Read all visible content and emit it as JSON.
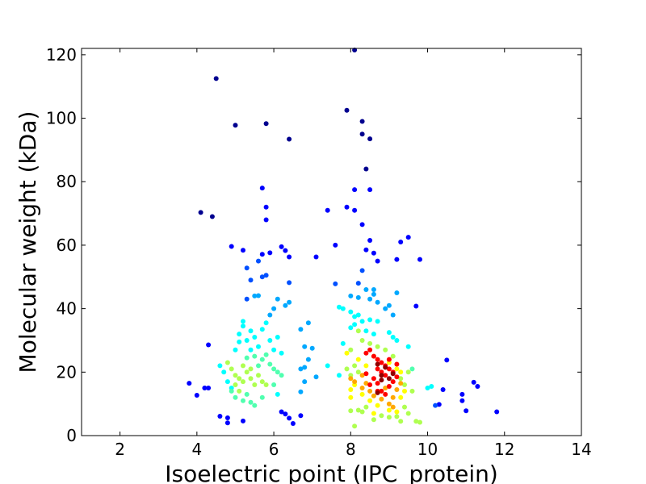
{
  "chart_data": {
    "type": "scatter",
    "title": "",
    "xlabel": "Isoelectric point (IPC_protein)",
    "ylabel": "Molecular weight (kDa)",
    "xlim": [
      1,
      14
    ],
    "ylim": [
      0,
      122
    ],
    "xticks": [
      2,
      4,
      6,
      8,
      10,
      12,
      14
    ],
    "yticks": [
      0,
      20,
      40,
      60,
      80,
      100,
      120
    ],
    "grid": false,
    "legend": "none",
    "colormap": "jet (point density)",
    "points": [
      [
        4.5,
        112.5,
        0
      ],
      [
        5.0,
        97.8,
        0
      ],
      [
        5.8,
        98.3,
        0
      ],
      [
        6.4,
        93.4,
        0
      ],
      [
        4.1,
        70.3,
        0
      ],
      [
        4.4,
        69.0,
        0
      ],
      [
        4.9,
        59.6,
        1
      ],
      [
        5.2,
        58.4,
        1
      ],
      [
        5.7,
        57.1,
        1
      ],
      [
        5.9,
        57.6,
        1
      ],
      [
        5.7,
        78.0,
        1
      ],
      [
        5.8,
        72.0,
        1
      ],
      [
        5.8,
        68.0,
        1
      ],
      [
        6.2,
        59.5,
        1
      ],
      [
        6.3,
        58.3,
        1
      ],
      [
        6.4,
        56.3,
        1
      ],
      [
        5.3,
        52.8,
        2
      ],
      [
        5.4,
        49.0,
        2
      ],
      [
        5.6,
        55.0,
        2
      ],
      [
        5.7,
        50.0,
        2
      ],
      [
        5.8,
        50.5,
        2
      ],
      [
        6.4,
        48.2,
        2
      ],
      [
        5.3,
        43.0,
        2
      ],
      [
        5.5,
        44.0,
        3
      ],
      [
        5.6,
        44.1,
        3
      ],
      [
        5.9,
        38.0,
        3
      ],
      [
        6.0,
        40.0,
        3
      ],
      [
        6.1,
        43.0,
        3
      ],
      [
        6.3,
        41.0,
        3
      ],
      [
        6.4,
        42.0,
        3
      ],
      [
        3.8,
        16.5,
        1
      ],
      [
        4.0,
        12.7,
        1
      ],
      [
        4.2,
        15.0,
        1
      ],
      [
        4.3,
        15.0,
        1
      ],
      [
        4.3,
        28.6,
        1
      ],
      [
        4.6,
        6.1,
        1
      ],
      [
        4.8,
        5.6,
        1
      ],
      [
        4.8,
        4.0,
        1
      ],
      [
        5.2,
        4.6,
        1
      ],
      [
        6.2,
        7.5,
        1
      ],
      [
        6.3,
        6.8,
        1
      ],
      [
        6.4,
        5.5,
        1
      ],
      [
        6.5,
        3.8,
        1
      ],
      [
        6.7,
        6.3,
        1
      ],
      [
        5.0,
        27.0,
        4
      ],
      [
        5.1,
        29.5,
        4
      ],
      [
        5.1,
        32.0,
        4
      ],
      [
        5.2,
        34.5,
        4
      ],
      [
        5.2,
        36.0,
        4
      ],
      [
        5.3,
        30.0,
        4
      ],
      [
        5.4,
        33.0,
        4
      ],
      [
        5.4,
        27.0,
        4
      ],
      [
        5.5,
        31.0,
        4
      ],
      [
        5.6,
        28.0,
        4
      ],
      [
        5.7,
        33.5,
        4
      ],
      [
        5.8,
        35.5,
        4
      ],
      [
        5.9,
        30.0,
        4
      ],
      [
        6.0,
        27.0,
        4
      ],
      [
        6.1,
        31.0,
        4
      ],
      [
        6.2,
        26.0,
        4
      ],
      [
        5.3,
        24.5,
        5
      ],
      [
        5.5,
        25.0,
        5
      ],
      [
        5.6,
        22.0,
        5
      ],
      [
        5.7,
        24.0,
        5
      ],
      [
        5.8,
        25.5,
        5
      ],
      [
        5.9,
        22.5,
        5
      ],
      [
        6.0,
        21.0,
        5
      ],
      [
        6.1,
        20.0,
        5
      ],
      [
        6.2,
        19.0,
        5
      ],
      [
        6.0,
        16.0,
        5
      ],
      [
        4.8,
        23.0,
        6
      ],
      [
        4.9,
        21.0,
        6
      ],
      [
        5.0,
        19.0,
        6
      ],
      [
        5.1,
        18.0,
        6
      ],
      [
        5.2,
        17.0,
        6
      ],
      [
        5.3,
        20.0,
        6
      ],
      [
        5.4,
        18.0,
        6
      ],
      [
        5.5,
        16.0,
        6
      ],
      [
        5.6,
        19.0,
        6
      ],
      [
        5.7,
        17.0,
        6
      ],
      [
        5.8,
        16.0,
        6
      ],
      [
        5.2,
        22.0,
        6
      ],
      [
        5.4,
        21.0,
        6
      ],
      [
        5.0,
        16.0,
        6
      ],
      [
        5.1,
        14.0,
        6
      ],
      [
        4.9,
        14.0,
        5
      ],
      [
        5.0,
        12.0,
        5
      ],
      [
        5.2,
        11.0,
        5
      ],
      [
        5.3,
        13.0,
        5
      ],
      [
        5.4,
        10.5,
        5
      ],
      [
        5.5,
        9.5,
        5
      ],
      [
        5.7,
        12.0,
        5
      ],
      [
        4.6,
        22.0,
        4
      ],
      [
        4.7,
        20.0,
        4
      ],
      [
        4.8,
        17.0,
        4
      ],
      [
        4.9,
        15.0,
        4
      ],
      [
        6.1,
        13.0,
        4
      ],
      [
        6.7,
        33.5,
        3
      ],
      [
        6.8,
        28.0,
        3
      ],
      [
        6.9,
        35.5,
        3
      ],
      [
        7.0,
        27.5,
        3
      ],
      [
        6.9,
        24.0,
        3
      ],
      [
        6.8,
        17.0,
        3
      ],
      [
        7.1,
        18.5,
        3
      ],
      [
        6.7,
        21.0,
        3
      ],
      [
        6.8,
        21.5,
        3
      ],
      [
        6.7,
        13.8,
        3
      ],
      [
        7.4,
        22.0,
        4
      ],
      [
        7.7,
        19.0,
        4
      ],
      [
        7.7,
        40.5,
        4
      ],
      [
        7.1,
        56.3,
        1
      ],
      [
        7.4,
        71.0,
        1
      ],
      [
        7.6,
        60.0,
        1
      ],
      [
        7.9,
        102.5,
        0
      ],
      [
        8.1,
        121.5,
        0
      ],
      [
        8.3,
        99.0,
        0
      ],
      [
        8.3,
        95.0,
        0
      ],
      [
        8.5,
        93.5,
        0
      ],
      [
        8.4,
        84.0,
        0
      ],
      [
        8.1,
        77.5,
        1
      ],
      [
        8.5,
        77.5,
        1
      ],
      [
        8.1,
        71.0,
        1
      ],
      [
        7.9,
        72.0,
        1
      ],
      [
        8.3,
        66.5,
        1
      ],
      [
        8.5,
        61.5,
        1
      ],
      [
        8.4,
        58.5,
        1
      ],
      [
        8.6,
        57.5,
        1
      ],
      [
        8.7,
        55.0,
        1
      ],
      [
        9.2,
        55.5,
        1
      ],
      [
        9.3,
        61.0,
        1
      ],
      [
        9.5,
        62.5,
        1
      ],
      [
        9.8,
        55.5,
        1
      ],
      [
        9.7,
        40.8,
        1
      ],
      [
        10.5,
        23.8,
        1
      ],
      [
        10.4,
        14.5,
        1
      ],
      [
        10.3,
        9.8,
        1
      ],
      [
        10.9,
        13.0,
        1
      ],
      [
        10.9,
        11.0,
        1
      ],
      [
        11.0,
        7.8,
        1
      ],
      [
        11.2,
        16.8,
        1
      ],
      [
        11.3,
        15.5,
        1
      ],
      [
        11.8,
        7.5,
        1
      ],
      [
        10.2,
        9.5,
        2
      ],
      [
        8.3,
        52.0,
        2
      ],
      [
        7.6,
        47.8,
        2
      ],
      [
        8.2,
        48.0,
        2
      ],
      [
        8.4,
        46.0,
        3
      ],
      [
        8.6,
        46.0,
        3
      ],
      [
        9.2,
        45.0,
        3
      ],
      [
        8.0,
        44.0,
        3
      ],
      [
        8.5,
        43.0,
        3
      ],
      [
        8.7,
        42.0,
        3
      ],
      [
        8.9,
        40.0,
        3
      ],
      [
        9.0,
        41.0,
        3
      ],
      [
        8.2,
        43.5,
        3
      ],
      [
        8.6,
        44.5,
        3
      ],
      [
        9.1,
        38.0,
        3
      ],
      [
        7.8,
        40.0,
        4
      ],
      [
        8.0,
        39.0,
        4
      ],
      [
        8.2,
        38.0,
        4
      ],
      [
        8.3,
        36.0,
        4
      ],
      [
        8.1,
        35.0,
        4
      ],
      [
        8.0,
        34.0,
        4
      ],
      [
        8.4,
        33.0,
        4
      ],
      [
        8.6,
        32.0,
        4
      ],
      [
        9.0,
        32.5,
        4
      ],
      [
        9.1,
        31.0,
        4
      ],
      [
        9.2,
        30.0,
        4
      ],
      [
        7.8,
        29.0,
        4
      ],
      [
        8.5,
        36.5,
        4
      ],
      [
        8.1,
        37.5,
        4
      ],
      [
        8.7,
        36.0,
        4
      ],
      [
        9.5,
        28.0,
        4
      ],
      [
        10.0,
        15.0,
        4
      ],
      [
        10.1,
        15.5,
        4
      ],
      [
        9.6,
        21.0,
        5
      ],
      [
        8.2,
        33.0,
        6
      ],
      [
        8.3,
        30.0,
        6
      ],
      [
        8.5,
        29.0,
        6
      ],
      [
        8.7,
        28.0,
        6
      ],
      [
        8.9,
        27.0,
        6
      ],
      [
        9.1,
        25.0,
        6
      ],
      [
        8.0,
        27.0,
        6
      ],
      [
        8.1,
        22.0,
        6
      ],
      [
        7.9,
        21.0,
        6
      ],
      [
        8.0,
        19.0,
        6
      ],
      [
        8.2,
        20.0,
        6
      ],
      [
        9.3,
        18.0,
        6
      ],
      [
        9.4,
        16.0,
        6
      ],
      [
        9.5,
        20.0,
        6
      ],
      [
        9.6,
        14.0,
        6
      ],
      [
        8.0,
        7.8,
        6
      ],
      [
        8.2,
        8.0,
        6
      ],
      [
        8.3,
        7.5,
        6
      ],
      [
        8.6,
        5.0,
        6
      ],
      [
        8.8,
        6.3,
        6
      ],
      [
        9.0,
        5.8,
        6
      ],
      [
        9.2,
        6.0,
        6
      ],
      [
        9.3,
        4.5,
        6
      ],
      [
        9.5,
        7.0,
        6
      ],
      [
        9.7,
        4.5,
        6
      ],
      [
        9.8,
        4.2,
        6
      ],
      [
        9.4,
        9.0,
        6
      ],
      [
        8.1,
        3.0,
        6
      ],
      [
        8.4,
        9.0,
        6
      ],
      [
        7.9,
        26.0,
        7
      ],
      [
        8.2,
        24.0,
        7
      ],
      [
        8.4,
        22.0,
        7
      ],
      [
        8.6,
        25.0,
        7
      ],
      [
        9.0,
        23.0,
        7
      ],
      [
        9.2,
        21.0,
        7
      ],
      [
        9.3,
        20.0,
        7
      ],
      [
        8.1,
        16.0,
        7
      ],
      [
        8.0,
        14.5,
        7
      ],
      [
        8.3,
        13.0,
        7
      ],
      [
        8.5,
        11.0,
        7
      ],
      [
        8.7,
        9.5,
        7
      ],
      [
        9.0,
        8.0,
        7
      ],
      [
        9.2,
        7.5,
        7
      ],
      [
        9.3,
        12.0,
        7
      ],
      [
        9.4,
        14.0,
        7
      ],
      [
        8.0,
        12.0,
        7
      ],
      [
        8.6,
        7.0,
        7
      ],
      [
        8.0,
        18.0,
        8
      ],
      [
        8.1,
        17.0,
        8
      ],
      [
        8.3,
        19.0,
        8
      ],
      [
        8.4,
        16.5,
        8
      ],
      [
        8.3,
        15.0,
        8
      ],
      [
        8.5,
        14.0,
        8
      ],
      [
        8.6,
        12.5,
        8
      ],
      [
        8.8,
        11.5,
        8
      ],
      [
        9.0,
        10.0,
        8
      ],
      [
        9.1,
        12.0,
        8
      ],
      [
        9.2,
        14.5,
        8
      ],
      [
        9.3,
        16.5,
        8
      ],
      [
        9.1,
        9.0,
        8
      ],
      [
        8.9,
        15.0,
        8
      ],
      [
        8.4,
        26.0,
        9
      ],
      [
        8.5,
        27.0,
        9
      ],
      [
        8.6,
        25.0,
        9
      ],
      [
        8.7,
        24.0,
        9
      ],
      [
        8.8,
        23.0,
        9
      ],
      [
        8.9,
        22.0,
        9
      ],
      [
        9.0,
        21.0,
        9
      ],
      [
        9.1,
        20.0,
        9
      ],
      [
        9.2,
        22.5,
        9
      ],
      [
        9.0,
        24.0,
        9
      ],
      [
        8.8,
        20.0,
        9
      ],
      [
        8.9,
        19.0,
        9
      ],
      [
        9.1,
        17.0,
        9
      ],
      [
        8.6,
        18.0,
        9
      ],
      [
        8.5,
        16.0,
        9
      ],
      [
        8.7,
        16.5,
        9
      ],
      [
        8.8,
        14.0,
        9
      ],
      [
        8.9,
        13.0,
        9
      ],
      [
        9.0,
        15.5,
        9
      ],
      [
        9.2,
        18.5,
        9
      ],
      [
        8.4,
        19.5,
        9
      ],
      [
        8.7,
        21.0,
        9
      ],
      [
        8.7,
        14.0,
        9
      ],
      [
        8.7,
        22.5,
        10
      ],
      [
        8.8,
        19.0,
        10
      ],
      [
        8.9,
        21.5,
        10
      ],
      [
        9.0,
        18.0,
        10
      ],
      [
        8.8,
        17.5,
        10
      ],
      [
        8.7,
        13.5,
        10
      ],
      [
        9.1,
        19.5,
        10
      ]
    ]
  }
}
